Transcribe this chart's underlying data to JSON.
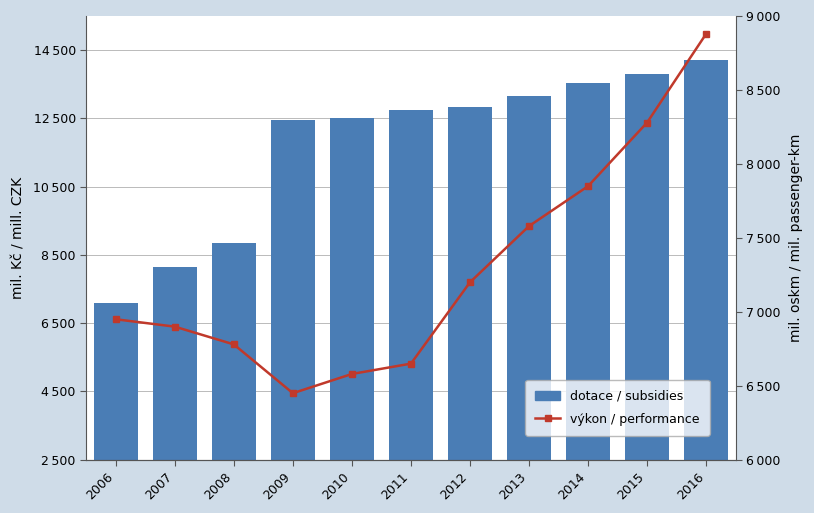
{
  "years": [
    2006,
    2007,
    2008,
    2009,
    2010,
    2011,
    2012,
    2013,
    2014,
    2015,
    2016
  ],
  "subsidies": [
    7100,
    8150,
    8850,
    12450,
    12500,
    12750,
    12850,
    13150,
    13550,
    13800,
    14200
  ],
  "performance": [
    6950,
    6900,
    6780,
    6450,
    6580,
    6650,
    7200,
    7580,
    7850,
    8280,
    8880
  ],
  "bar_color": "#4a7db5",
  "line_color": "#c0392b",
  "background_color": "#cfdce8",
  "plot_background": "#ffffff",
  "ylabel_left": "mil. Kč / mill. CZK",
  "ylabel_right": "mil. oskm / mil. passenger-km",
  "ylim_left": [
    2500,
    15500
  ],
  "ylim_right": [
    6000,
    9000
  ],
  "yticks_left": [
    2500,
    4500,
    6500,
    8500,
    10500,
    12500,
    14500
  ],
  "yticks_right": [
    6000,
    6500,
    7000,
    7500,
    8000,
    8500,
    9000
  ],
  "legend_subsidies": "dotace / subsidies",
  "legend_performance": "výkon / performance",
  "axis_label_fontsize": 10,
  "tick_fontsize": 9,
  "legend_fontsize": 9
}
